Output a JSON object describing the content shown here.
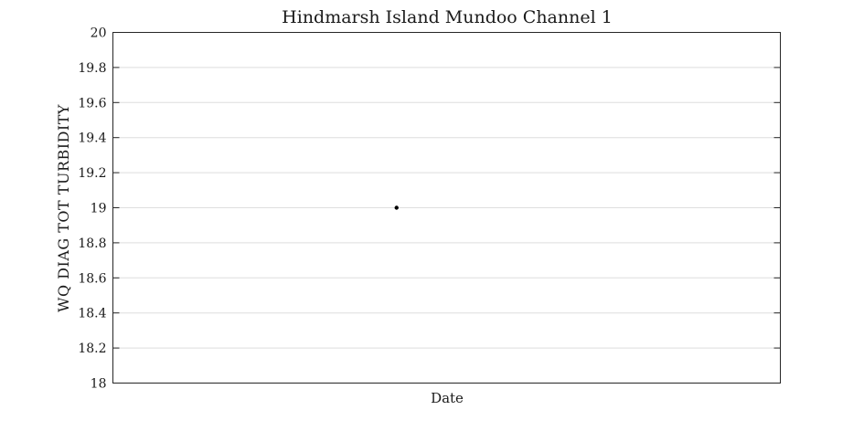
{
  "chart_data": {
    "type": "scatter",
    "title": "Hindmarsh Island Mundoo Channel 1",
    "xlabel": "Date",
    "ylabel": "WQ DIAG TOT TURBIDITY",
    "ylim": [
      18,
      20
    ],
    "yticks": [
      "18",
      "18.2",
      "18.4",
      "18.6",
      "18.8",
      "19",
      "19.2",
      "19.4",
      "19.6",
      "19.8",
      "20"
    ],
    "xlim": [
      0,
      1
    ],
    "grid": "horizontal",
    "series": [
      {
        "points": [
          {
            "x": 0.425,
            "y": 19.0
          }
        ]
      }
    ]
  }
}
